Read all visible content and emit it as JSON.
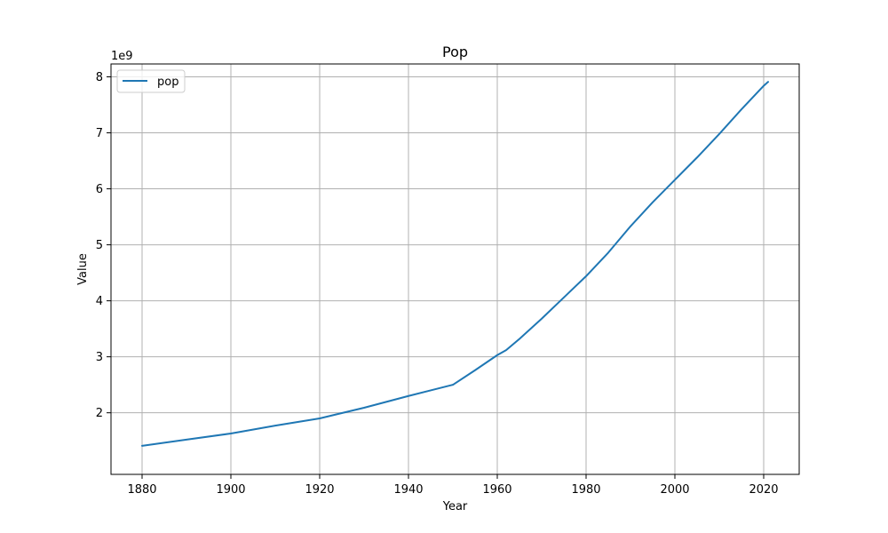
{
  "chart_data": {
    "type": "line",
    "title": "Pop",
    "xlabel": "Year",
    "ylabel": "Value",
    "y_scale_label": "1e9",
    "xlim": [
      1873,
      2028
    ],
    "ylim": [
      900000000,
      8230000000
    ],
    "x_ticks": [
      1880,
      1900,
      1920,
      1940,
      1960,
      1980,
      2000,
      2020
    ],
    "y_ticks": [
      2000000000,
      3000000000,
      4000000000,
      5000000000,
      6000000000,
      7000000000,
      8000000000
    ],
    "y_tick_labels": [
      "2",
      "3",
      "4",
      "5",
      "6",
      "7",
      "8"
    ],
    "x_tick_labels": [
      "1880",
      "1900",
      "1920",
      "1940",
      "1960",
      "1980",
      "2000",
      "2020"
    ],
    "grid": true,
    "legend_position": "top-left",
    "series": [
      {
        "name": "pop",
        "color": "#1f77b4",
        "x": [
          1880,
          1890,
          1900,
          1910,
          1920,
          1930,
          1940,
          1945,
          1950,
          1955,
          1960,
          1962,
          1965,
          1970,
          1975,
          1980,
          1985,
          1990,
          1995,
          2000,
          2005,
          2010,
          2015,
          2020,
          2021
        ],
        "y": [
          1410000000,
          1520000000,
          1630000000,
          1770000000,
          1900000000,
          2090000000,
          2300000000,
          2400000000,
          2500000000,
          2760000000,
          3030000000,
          3120000000,
          3320000000,
          3680000000,
          4060000000,
          4440000000,
          4860000000,
          5330000000,
          5760000000,
          6160000000,
          6560000000,
          6980000000,
          7420000000,
          7840000000,
          7910000000
        ]
      }
    ]
  }
}
